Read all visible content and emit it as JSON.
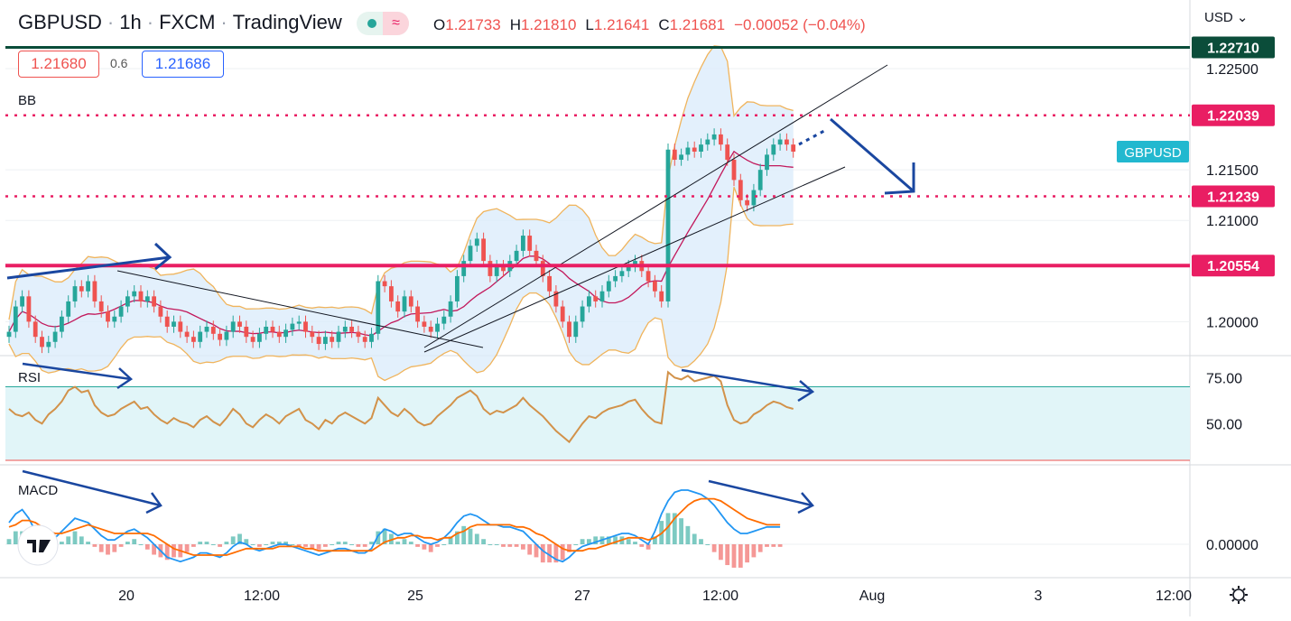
{
  "header": {
    "symbol": "GBPUSD",
    "interval": "1h",
    "broker": "FXCM",
    "platform": "TradingView",
    "wave_glyph": "≈",
    "open_label": "O",
    "open": "1.21733",
    "high_label": "H",
    "high": "1.21810",
    "low_label": "L",
    "low": "1.21641",
    "close_label": "C",
    "close": "1.21681",
    "change": "−0.00052 (−0.04%)"
  },
  "quote": {
    "bid": "1.21680",
    "spread": "0.6",
    "ask": "1.21686"
  },
  "currency": "USD",
  "currency_chevron": "⌄",
  "settings_icon": "gear-icon",
  "colors": {
    "up": "#26a69a",
    "down": "#ef5350",
    "support": "#e91e63",
    "resistance_top": "#0b4d3a",
    "bb_band": "#f0b45c",
    "bb_fill": "#dcecfb",
    "bb_basis": "#c2185b",
    "rsi": "#d2924a",
    "rsi_zone": "#e1f5f8",
    "macd": "#2196f3",
    "signal": "#ff6d00",
    "arrow": "#1a47a0",
    "label_teal": "#22b8cf"
  },
  "chart_data": [
    {
      "type": "candlestick",
      "title": "GBPUSD · 1h · FXCM",
      "ylim": [
        1.197,
        1.23
      ],
      "y_ticks": [
        "1.22500",
        "1.21500",
        "1.21000",
        "1.20000"
      ],
      "x_ticks": [
        "20",
        "12:00",
        "25",
        "27",
        "12:00",
        "Aug",
        "3",
        "12:00"
      ],
      "levels": [
        {
          "value": 1.2271,
          "label": "1.22710",
          "style": "solid-dark"
        },
        {
          "value": 1.22039,
          "label": "1.22039",
          "style": "dotted"
        },
        {
          "value": 1.21239,
          "label": "1.21239",
          "style": "dotted"
        },
        {
          "value": 1.20554,
          "label": "1.20554",
          "style": "solid-pink"
        }
      ],
      "symbol_tag": "GBPUSD",
      "indicator": "BB",
      "close_series": [
        1.199,
        1.2015,
        1.2025,
        1.2,
        1.1985,
        1.1975,
        1.198,
        1.199,
        1.2005,
        1.202,
        1.2035,
        1.203,
        1.204,
        1.202,
        1.201,
        1.2,
        1.2005,
        1.2015,
        1.2025,
        1.203,
        1.202,
        1.2025,
        1.2015,
        1.2005,
        1.1995,
        1.2,
        1.199,
        1.1985,
        1.198,
        1.199,
        1.1995,
        1.1988,
        1.1982,
        1.199,
        1.2,
        1.1995,
        1.1985,
        1.198,
        1.1988,
        1.1995,
        1.199,
        1.1985,
        1.1992,
        1.1998,
        1.2,
        1.199,
        1.1985,
        1.1978,
        1.1985,
        1.198,
        1.199,
        1.1995,
        1.199,
        1.1985,
        1.198,
        1.1988,
        1.204,
        1.2035,
        1.202,
        1.201,
        1.2025,
        1.2015,
        1.2,
        1.1995,
        1.199,
        1.1998,
        1.2005,
        1.202,
        1.2045,
        1.206,
        1.2075,
        1.2082,
        1.206,
        1.2045,
        1.2055,
        1.205,
        1.206,
        1.207,
        1.2085,
        1.207,
        1.206,
        1.2045,
        1.203,
        1.2015,
        1.2,
        1.1985,
        1.2,
        1.2015,
        1.2025,
        1.202,
        1.203,
        1.204,
        1.2045,
        1.205,
        1.2055,
        1.206,
        1.205,
        1.204,
        1.203,
        1.202,
        1.217,
        1.216,
        1.2165,
        1.2172,
        1.2168,
        1.2175,
        1.218,
        1.2185,
        1.2175,
        1.216,
        1.214,
        1.212,
        1.2115,
        1.213,
        1.215,
        1.2165,
        1.2175,
        1.218,
        1.2175,
        1.2168
      ]
    },
    {
      "type": "line",
      "indicator": "RSI",
      "ylim": [
        30,
        85
      ],
      "y_ticks": [
        "75.00",
        "50.00"
      ],
      "band": [
        70,
        30
      ],
      "values": [
        58,
        55,
        54,
        56,
        52,
        50,
        55,
        58,
        62,
        68,
        70,
        67,
        68,
        60,
        56,
        54,
        55,
        58,
        60,
        62,
        58,
        59,
        55,
        52,
        50,
        53,
        51,
        50,
        48,
        52,
        54,
        51,
        49,
        53,
        58,
        55,
        50,
        48,
        52,
        55,
        53,
        50,
        54,
        56,
        58,
        52,
        50,
        47,
        52,
        50,
        54,
        56,
        54,
        52,
        50,
        53,
        64,
        60,
        56,
        54,
        58,
        55,
        51,
        49,
        50,
        54,
        57,
        60,
        64,
        66,
        68,
        65,
        58,
        55,
        57,
        56,
        58,
        60,
        64,
        60,
        57,
        54,
        50,
        46,
        43,
        40,
        45,
        50,
        54,
        53,
        56,
        58,
        59,
        60,
        62,
        63,
        58,
        54,
        51,
        50,
        78,
        75,
        74,
        76,
        73,
        74,
        75,
        76,
        73,
        60,
        52,
        50,
        51,
        55,
        57,
        60,
        62,
        61,
        59,
        58
      ]
    },
    {
      "type": "line",
      "indicator": "MACD",
      "y_ticks": [
        "0.00000"
      ],
      "macd": [
        0.001,
        0.0014,
        0.0016,
        0.0012,
        0.0006,
        0.0002,
        0.0001,
        0.0003,
        0.0006,
        0.0009,
        0.0012,
        0.0011,
        0.001,
        0.0007,
        0.0004,
        0.0002,
        0.0002,
        0.0004,
        0.0006,
        0.0007,
        0.0005,
        0.0003,
        0.0,
        -0.0003,
        -0.0006,
        -0.0007,
        -0.0008,
        -0.0007,
        -0.0006,
        -0.0004,
        -0.0004,
        -0.0005,
        -0.0006,
        -0.0004,
        -0.0001,
        0.0001,
        0.0,
        -0.0002,
        -0.0003,
        -0.0002,
        -0.0001,
        0.0,
        0.0,
        -0.0001,
        -0.0002,
        -0.0003,
        -0.0004,
        -0.0005,
        -0.0004,
        -0.0003,
        -0.0002,
        -0.0002,
        -0.0003,
        -0.0004,
        -0.0004,
        -0.0002,
        0.0004,
        0.0007,
        0.0006,
        0.0004,
        0.0005,
        0.0005,
        0.0003,
        0.0001,
        0.0,
        0.0001,
        0.0003,
        0.0006,
        0.001,
        0.0013,
        0.0014,
        0.0013,
        0.0011,
        0.0009,
        0.0009,
        0.0008,
        0.0008,
        0.0007,
        0.0006,
        0.0003,
        0.0,
        -0.0003,
        -0.0005,
        -0.0007,
        -0.0008,
        -0.0006,
        -0.0003,
        -0.0001,
        0.0,
        0.0001,
        0.0002,
        0.0003,
        0.0004,
        0.0005,
        0.0005,
        0.0004,
        0.0002,
        0.0,
        0.0006,
        0.0014,
        0.002,
        0.0024,
        0.0025,
        0.0025,
        0.0024,
        0.0023,
        0.0021,
        0.0018,
        0.0014,
        0.001,
        0.0007,
        0.0005,
        0.0005,
        0.0006,
        0.0007,
        0.0008,
        0.0008,
        0.0008
      ],
      "signal": [
        0.0008,
        0.0009,
        0.0011,
        0.0011,
        0.001,
        0.0008,
        0.0006,
        0.0005,
        0.0005,
        0.0006,
        0.0007,
        0.0008,
        0.0009,
        0.0008,
        0.0007,
        0.0006,
        0.0005,
        0.0005,
        0.0005,
        0.0005,
        0.0005,
        0.0005,
        0.0004,
        0.0002,
        0.0,
        -0.0002,
        -0.0003,
        -0.0004,
        -0.0005,
        -0.0005,
        -0.0005,
        -0.0005,
        -0.0005,
        -0.0005,
        -0.0004,
        -0.0003,
        -0.0002,
        -0.0002,
        -0.0002,
        -0.0002,
        -0.0002,
        -0.0001,
        -0.0001,
        -0.0001,
        -0.0001,
        -0.0002,
        -0.0002,
        -0.0003,
        -0.0003,
        -0.0003,
        -0.0003,
        -0.0003,
        -0.0003,
        -0.0003,
        -0.0003,
        -0.0003,
        -0.0001,
        0.0001,
        0.0002,
        0.0003,
        0.0003,
        0.0004,
        0.0004,
        0.0003,
        0.0003,
        0.0002,
        0.0003,
        0.0003,
        0.0005,
        0.0006,
        0.0008,
        0.0009,
        0.0009,
        0.0009,
        0.0009,
        0.0009,
        0.0009,
        0.0008,
        0.0008,
        0.0007,
        0.0005,
        0.0004,
        0.0002,
        0.0,
        -0.0002,
        -0.0003,
        -0.0003,
        -0.0003,
        -0.0002,
        -0.0002,
        -0.0001,
        0.0,
        0.0001,
        0.0002,
        0.0003,
        0.0003,
        0.0003,
        0.0002,
        0.0003,
        0.0005,
        0.0008,
        0.0012,
        0.0015,
        0.0018,
        0.002,
        0.0021,
        0.0021,
        0.0021,
        0.002,
        0.0018,
        0.0016,
        0.0014,
        0.0012,
        0.0011,
        0.001,
        0.0009,
        0.0009,
        0.0009
      ]
    }
  ]
}
